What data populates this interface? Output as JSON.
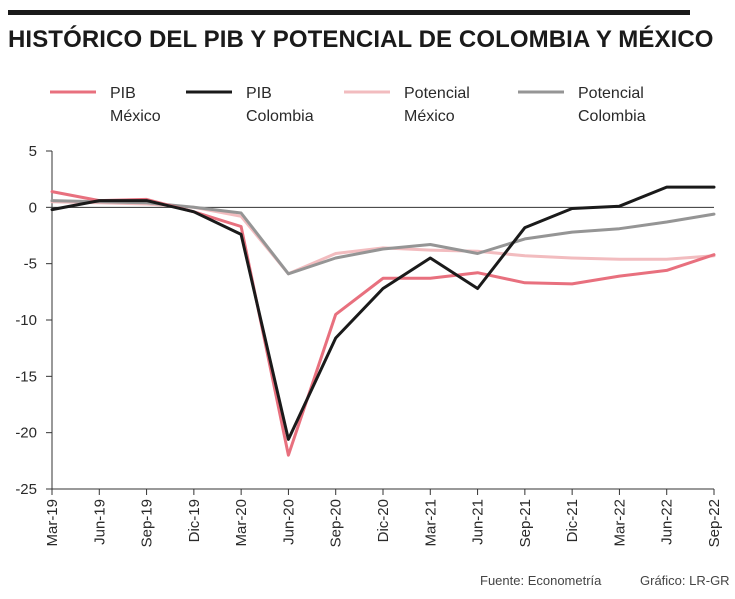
{
  "page": {
    "title": "HISTÓRICO DEL PIB Y POTENCIAL DE COLOMBIA Y MÉXICO",
    "source": "Fuente: Econometría",
    "credit": "Gráfico: LR-GR"
  },
  "chart_data": {
    "type": "line",
    "title": "HISTÓRICO DEL PIB Y POTENCIAL DE COLOMBIA Y MÉXICO",
    "xlabel": "",
    "ylabel": "",
    "categories": [
      "Mar-19",
      "Jun-19",
      "Sep-19",
      "Dic-19",
      "Mar-20",
      "Jun-20",
      "Sep-20",
      "Dic-20",
      "Mar-21",
      "Jun-21",
      "Sep-21",
      "Dic-21",
      "Mar-22",
      "Jun-22",
      "Sep-22"
    ],
    "ylim": [
      -25,
      5
    ],
    "yticks": [
      5,
      0,
      -5,
      -10,
      -15,
      -20,
      -25
    ],
    "grid": false,
    "zero_line": true,
    "legend_position": "top",
    "series": [
      {
        "name_lines": [
          "PIB",
          "México"
        ],
        "color": "#e8707e",
        "values": [
          1.4,
          0.6,
          0.7,
          -0.4,
          -1.7,
          -22,
          -9.5,
          -6.3,
          -6.3,
          -5.8,
          -6.7,
          -6.8,
          -6.1,
          -5.6,
          -4.2
        ]
      },
      {
        "name_lines": [
          "PIB",
          "Colombia"
        ],
        "color": "#1a1a1a",
        "values": [
          -0.2,
          0.6,
          0.6,
          -0.4,
          -2.4,
          -20.6,
          -11.6,
          -7.2,
          -4.5,
          -7.2,
          -1.8,
          -0.1,
          0.1,
          1.8,
          1.8
        ]
      },
      {
        "name_lines": [
          "Potencial",
          "México"
        ],
        "color": "#f2bcbf",
        "values": [
          0.5,
          0.4,
          0.3,
          0.0,
          -0.8,
          -5.9,
          -4.1,
          -3.6,
          -3.8,
          -3.9,
          -4.3,
          -4.5,
          -4.6,
          -4.6,
          -4.3
        ]
      },
      {
        "name_lines": [
          "Potencial",
          "Colombia"
        ],
        "color": "#959595",
        "values": [
          0.6,
          0.5,
          0.4,
          0.0,
          -0.5,
          -5.9,
          -4.5,
          -3.7,
          -3.3,
          -4.1,
          -2.8,
          -2.2,
          -1.9,
          -1.3,
          -0.6
        ]
      }
    ]
  }
}
